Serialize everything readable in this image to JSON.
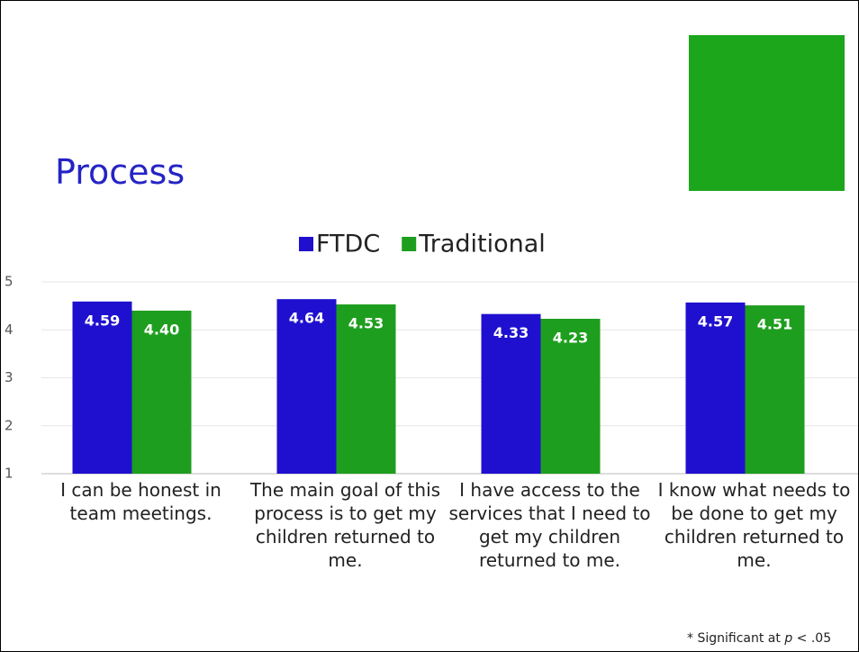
{
  "title": "Process",
  "footnote": {
    "prefix": "* Significant at",
    "variable": "p",
    "suffix": "< .05"
  },
  "chart_data": {
    "type": "bar",
    "categories": [
      "I can be honest in team meetings.",
      "The main goal of this process is to get my children returned to me.",
      "I have access to the services that I need to get my children returned to me.",
      "I know what needs to be done to get my children returned to me."
    ],
    "series": [
      {
        "name": "FTDC",
        "color": "#1f10cf",
        "values": [
          4.59,
          4.64,
          4.33,
          4.57
        ]
      },
      {
        "name": "Traditional",
        "color": "#1e9e1e",
        "values": [
          4.4,
          4.53,
          4.23,
          4.51
        ],
        "value_labels": [
          "4.40",
          "4.53",
          "4.23",
          "4.51"
        ]
      }
    ],
    "ylim": [
      1,
      5
    ],
    "yticks": [
      1,
      2,
      3,
      4,
      5
    ],
    "grid": true,
    "legend": "top"
  }
}
